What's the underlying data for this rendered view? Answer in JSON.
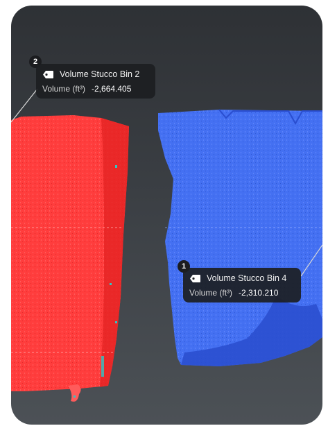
{
  "annotations": [
    {
      "number": "2",
      "title": "Volume Stucco Bin 2",
      "metric_label": "Volume (ft³)",
      "metric_value": "-2,664.405",
      "icon": "tag-icon"
    },
    {
      "number": "1",
      "title": "Volume Stucco Bin 4",
      "metric_label": "Volume (ft³)",
      "metric_value": "-2,310.210",
      "icon": "tag-icon"
    }
  ],
  "colors": {
    "bin_2_fill": "#ff3b3b",
    "bin_4_fill": "#3f6ff0",
    "annotation_bg": "#1c1e22",
    "background": "#33373b"
  }
}
